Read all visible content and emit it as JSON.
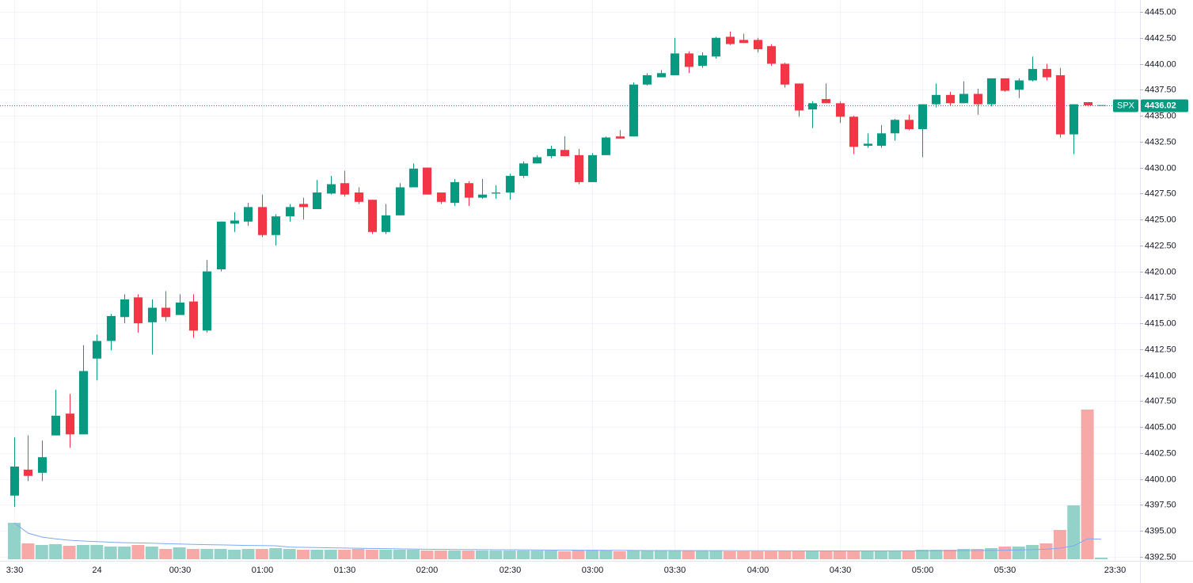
{
  "chart_data": {
    "type": "candlestick",
    "symbol": "SPX",
    "last_price": 4436.02,
    "categories": [
      "3:30",
      null,
      null,
      null,
      null,
      null,
      "24",
      null,
      null,
      null,
      null,
      null,
      "00:30",
      null,
      null,
      null,
      null,
      null,
      "01:00",
      null,
      null,
      null,
      null,
      null,
      "01:30",
      null,
      null,
      null,
      null,
      null,
      "02:00",
      null,
      null,
      null,
      null,
      null,
      "02:30",
      null,
      null,
      null,
      null,
      null,
      "03:00",
      null,
      null,
      null,
      null,
      null,
      "03:30",
      null,
      null,
      null,
      null,
      null,
      "04:00",
      null,
      null,
      null,
      null,
      null,
      "04:30",
      null,
      null,
      null,
      null,
      null,
      "05:00",
      null,
      null,
      null,
      null,
      null,
      "05:30",
      null,
      null,
      null,
      null,
      null,
      null,
      null,
      "23:30"
    ],
    "open": [
      4398.4,
      4400.9,
      4400.6,
      4404.2,
      4406.3,
      4404.3,
      4411.6,
      4413.3,
      4415.6,
      4417.5,
      4415.1,
      4416.5,
      4415.8,
      4417.1,
      4414.3,
      4420.2,
      4424.6,
      4424.8,
      4426.2,
      4423.5,
      4425.3,
      4426.5,
      4426.0,
      4427.5,
      4428.5,
      4427.6,
      4426.9,
      4423.8,
      4425.4,
      4428.1,
      4430.0,
      4427.6,
      4426.6,
      4428.5,
      4427.1,
      4427.5,
      4427.6,
      4429.2,
      4430.4,
      4431.1,
      4431.7,
      4431.2,
      4428.6,
      4431.2,
      4433.0,
      4433.0,
      4438.0,
      4438.7,
      4438.9,
      4441.0,
      4439.8,
      4440.7,
      4442.6,
      4442.3,
      4442.3,
      4441.7,
      4440.0,
      4438.1,
      4435.6,
      4436.6,
      4436.2,
      4434.9,
      4432.1,
      4432.1,
      4433.3,
      4434.6,
      4433.7,
      4436.1,
      4437.0,
      4436.2,
      4437.1,
      4436.1,
      4438.6,
      4437.5,
      4438.4,
      4439.5,
      4438.9,
      4433.2,
      4436.3,
      4436.02,
      null
    ],
    "high": [
      4404.0,
      4404.2,
      4403.7,
      4408.6,
      4408.2,
      4412.9,
      4413.9,
      4415.9,
      4417.8,
      4417.8,
      4417.3,
      4418.1,
      4417.8,
      4417.8,
      4421.1,
      4424.8,
      4425.7,
      4426.6,
      4427.4,
      4425.5,
      4426.5,
      4427.1,
      4428.8,
      4429.2,
      4429.7,
      4428.1,
      4426.9,
      4426.5,
      4428.5,
      4430.4,
      4430.0,
      4427.6,
      4428.9,
      4428.7,
      4428.9,
      4428.3,
      4429.4,
      4430.6,
      4431.2,
      4432.1,
      4433.0,
      4431.8,
      4431.4,
      4433.0,
      4433.6,
      4438.2,
      4439.1,
      4439.4,
      4442.5,
      4441.2,
      4441.1,
      4442.6,
      4443.1,
      4442.9,
      4442.5,
      4441.9,
      4440.1,
      4438.1,
      4436.4,
      4438.1,
      4436.4,
      4435.0,
      4433.3,
      4434.1,
      4434.7,
      4435.1,
      4436.1,
      4438.1,
      4437.3,
      4438.3,
      4437.6,
      4438.6,
      4438.6,
      4438.6,
      4440.7,
      4440.0,
      4439.6,
      4436.1,
      4436.3,
      4436.02,
      null
    ],
    "low": [
      4397.3,
      4399.8,
      4399.8,
      4404.2,
      4403.0,
      4404.3,
      4409.5,
      4412.4,
      4415.0,
      4414.1,
      4412.0,
      4415.2,
      4415.8,
      4413.6,
      4414.1,
      4420.0,
      4423.8,
      4424.4,
      4423.3,
      4422.5,
      4424.8,
      4425.0,
      4426.0,
      4427.4,
      4427.2,
      4426.5,
      4423.6,
      4423.6,
      4425.4,
      4428.1,
      4427.4,
      4426.5,
      4426.3,
      4426.3,
      4427.0,
      4427.0,
      4426.9,
      4429.0,
      4430.4,
      4430.9,
      4431.1,
      4428.4,
      4428.6,
      4431.2,
      4432.8,
      4433.0,
      4437.9,
      4438.7,
      4438.9,
      4439.1,
      4439.6,
      4440.5,
      4441.8,
      4442.0,
      4441.1,
      4439.8,
      4437.7,
      4434.9,
      4433.8,
      4436.2,
      4434.3,
      4431.3,
      4431.9,
      4431.9,
      4432.6,
      4433.6,
      4431.0,
      4435.8,
      4436.0,
      4436.2,
      4435.1,
      4435.9,
      4437.3,
      4436.7,
      4438.3,
      4438.4,
      4432.9,
      4431.3,
      4435.9,
      4436.02,
      null
    ],
    "close": [
      4401.2,
      4400.3,
      4402.1,
      4406.1,
      4404.3,
      4410.4,
      4413.3,
      4415.7,
      4417.3,
      4415.0,
      4416.5,
      4415.6,
      4417.0,
      4414.3,
      4420.0,
      4424.8,
      4424.9,
      4426.2,
      4423.5,
      4425.3,
      4426.2,
      4426.2,
      4427.6,
      4428.4,
      4427.4,
      4426.7,
      4423.8,
      4425.4,
      4428.1,
      4429.9,
      4427.4,
      4426.7,
      4428.6,
      4427.1,
      4427.4,
      4427.6,
      4429.2,
      4430.4,
      4431.0,
      4431.8,
      4431.1,
      4428.6,
      4431.2,
      4432.9,
      4432.8,
      4438.0,
      4438.9,
      4439.1,
      4441.0,
      4439.7,
      4440.8,
      4442.5,
      4441.9,
      4442.0,
      4441.4,
      4440.0,
      4438.0,
      4435.5,
      4436.2,
      4436.2,
      4434.9,
      4432.0,
      4432.3,
      4433.3,
      4434.6,
      4433.7,
      4436.1,
      4437.0,
      4436.2,
      4437.1,
      4436.1,
      4438.6,
      4437.4,
      4438.4,
      4439.5,
      4438.7,
      4433.2,
      4436.1,
      4436.0,
      4436.02,
      null
    ],
    "volume": [
      46,
      20,
      18,
      19,
      17,
      18,
      18,
      16,
      16,
      18,
      16,
      13,
      15,
      13,
      13,
      13,
      12,
      13,
      13,
      14,
      13,
      12,
      12,
      12,
      12,
      13,
      12,
      12,
      12,
      12,
      11,
      11,
      11,
      11,
      11,
      11,
      11,
      11,
      11,
      11,
      10,
      11,
      11,
      11,
      10,
      11,
      11,
      11,
      11,
      11,
      11,
      11,
      10,
      10,
      10,
      10,
      10,
      10,
      10,
      10,
      11,
      11,
      11,
      11,
      11,
      11,
      12,
      12,
      12,
      13,
      13,
      14,
      16,
      16,
      18,
      20,
      37,
      68,
      189,
      2,
      null
    ],
    "up_color": "#089981",
    "down_color": "#f23645",
    "volume_up_color": "#92d2c9",
    "volume_down_color": "#f7a9a7",
    "volume_lim": [
      0,
      200
    ],
    "ylim": [
      4392.5,
      4445
    ],
    "yticks": [
      {
        "value": 4392.5,
        "label": "4392.50"
      },
      {
        "value": 4395,
        "label": "4395.00"
      },
      {
        "value": 4397.5,
        "label": "4397.50"
      },
      {
        "value": 4400,
        "label": "4400.00"
      },
      {
        "value": 4402.5,
        "label": "4402.50"
      },
      {
        "value": 4405,
        "label": "4405.00"
      },
      {
        "value": 4407.5,
        "label": "4407.50"
      },
      {
        "value": 4410,
        "label": "4410.00"
      },
      {
        "value": 4412.5,
        "label": "4412.50"
      },
      {
        "value": 4415,
        "label": "4415.00"
      },
      {
        "value": 4417.5,
        "label": "4417.50"
      },
      {
        "value": 4420,
        "label": "4420.00"
      },
      {
        "value": 4422.5,
        "label": "4422.50"
      },
      {
        "value": 4425,
        "label": "4425.00"
      },
      {
        "value": 4427.5,
        "label": "4427.50"
      },
      {
        "value": 4430,
        "label": "4430.00"
      },
      {
        "value": 4432.5,
        "label": "4432.50"
      },
      {
        "value": 4435,
        "label": "4435.00"
      },
      {
        "value": 4437.5,
        "label": "4437.50"
      },
      {
        "value": 4440,
        "label": "4440.00"
      },
      {
        "value": 4442.5,
        "label": "4442.50"
      },
      {
        "value": 4445,
        "label": "4445.00"
      }
    ],
    "grid": true
  }
}
